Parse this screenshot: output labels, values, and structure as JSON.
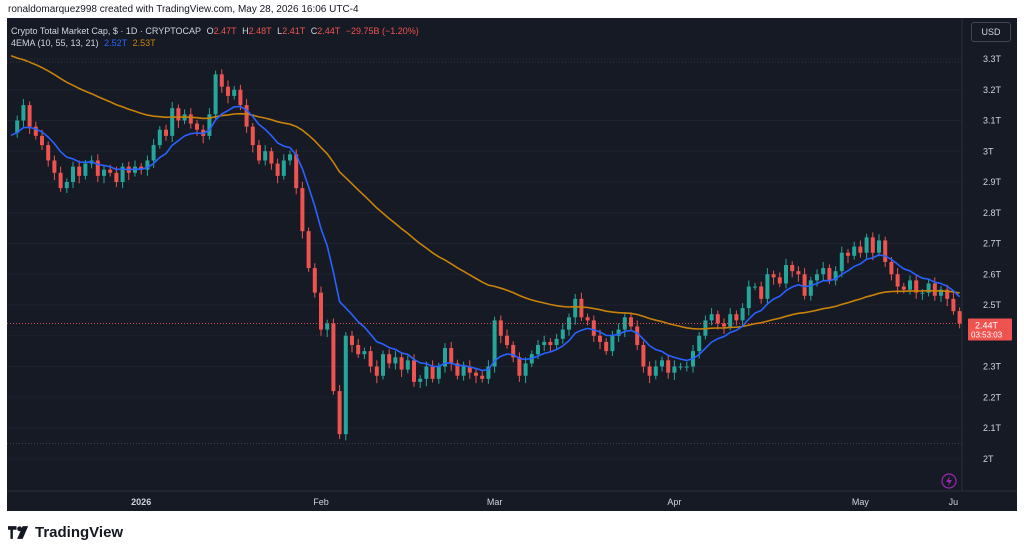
{
  "header": {
    "created_by": "ronaldomarquez998 created with TradingView.com, May 28, 2026 16:06 UTC-4"
  },
  "legend": {
    "symbol": "Crypto Total Market Cap, $ · 1D · CRYPTOCAP",
    "o_label": "O",
    "o_value": "2.47T",
    "h_label": "H",
    "h_value": "2.48T",
    "l_label": "L",
    "l_value": "2.41T",
    "c_label": "C",
    "c_value": "2.44T",
    "change": "−29.75B (−1.20%)",
    "indicator": "4EMA (10, 55, 13, 21)",
    "ema_fast_value": "2.52T",
    "ema_slow_value": "2.53T"
  },
  "usd_button": "USD",
  "price_tag": {
    "value": "2.44T",
    "countdown": "03:53:03"
  },
  "footer": {
    "brand": "TradingView"
  },
  "colors": {
    "background": "#161a25",
    "up": "#26a69a",
    "down": "#ef5350",
    "ema_fast": "#2962ff",
    "ema_slow": "#c8820a",
    "text": "#d1d4dc"
  },
  "chart_data": {
    "type": "candlestick",
    "x_tick_labels": [
      "2026",
      "Feb",
      "Mar",
      "Apr",
      "May",
      "Ju"
    ],
    "y_tick_labels": [
      "2T",
      "2.1T",
      "2.2T",
      "2.3T",
      "2.4T",
      "2.5T",
      "2.6T",
      "2.7T",
      "2.8T",
      "2.9T",
      "3T",
      "3.1T",
      "3.2T",
      "3.3T"
    ],
    "ylim": [
      1.9,
      3.38
    ],
    "close_series": [
      3.06,
      3.1,
      3.15,
      3.08,
      3.05,
      3.02,
      2.97,
      2.93,
      2.88,
      2.9,
      2.95,
      2.92,
      2.96,
      2.97,
      2.92,
      2.94,
      2.93,
      2.9,
      2.95,
      2.93,
      2.95,
      2.94,
      2.97,
      3.02,
      3.07,
      3.05,
      3.14,
      3.1,
      3.12,
      3.09,
      3.07,
      3.05,
      3.12,
      3.25,
      3.21,
      3.18,
      3.2,
      3.15,
      3.08,
      3.02,
      2.97,
      3.0,
      2.96,
      2.92,
      2.97,
      2.99,
      2.88,
      2.74,
      2.62,
      2.54,
      2.42,
      2.44,
      2.22,
      2.08,
      2.4,
      2.37,
      2.34,
      2.35,
      2.3,
      2.27,
      2.34,
      2.31,
      2.33,
      2.29,
      2.32,
      2.25,
      2.26,
      2.3,
      2.26,
      2.3,
      2.36,
      2.31,
      2.27,
      2.3,
      2.28,
      2.27,
      2.26,
      2.3,
      2.45,
      2.4,
      2.37,
      2.33,
      2.27,
      2.31,
      2.34,
      2.37,
      2.38,
      2.37,
      2.39,
      2.42,
      2.46,
      2.52,
      2.46,
      2.45,
      2.4,
      2.38,
      2.35,
      2.4,
      2.42,
      2.46,
      2.43,
      2.37,
      2.3,
      2.27,
      2.3,
      2.32,
      2.28,
      2.3,
      2.3,
      2.3,
      2.35,
      2.4,
      2.45,
      2.47,
      2.44,
      2.43,
      2.47,
      2.45,
      2.49,
      2.56,
      2.56,
      2.52,
      2.6,
      2.59,
      2.57,
      2.63,
      2.61,
      2.6,
      2.53,
      2.58,
      2.6,
      2.62,
      2.58,
      2.61,
      2.67,
      2.66,
      2.69,
      2.67,
      2.72,
      2.67,
      2.71,
      2.64,
      2.6,
      2.56,
      2.55,
      2.58,
      2.54,
      2.54,
      2.57,
      2.53,
      2.55,
      2.52,
      2.48,
      2.44
    ],
    "series": [
      {
        "name": "EMA 10",
        "color": "#2962ff"
      },
      {
        "name": "EMA 55",
        "color": "#c8820a"
      }
    ],
    "current_price": 2.44,
    "last_date": "May 28, 2026"
  }
}
